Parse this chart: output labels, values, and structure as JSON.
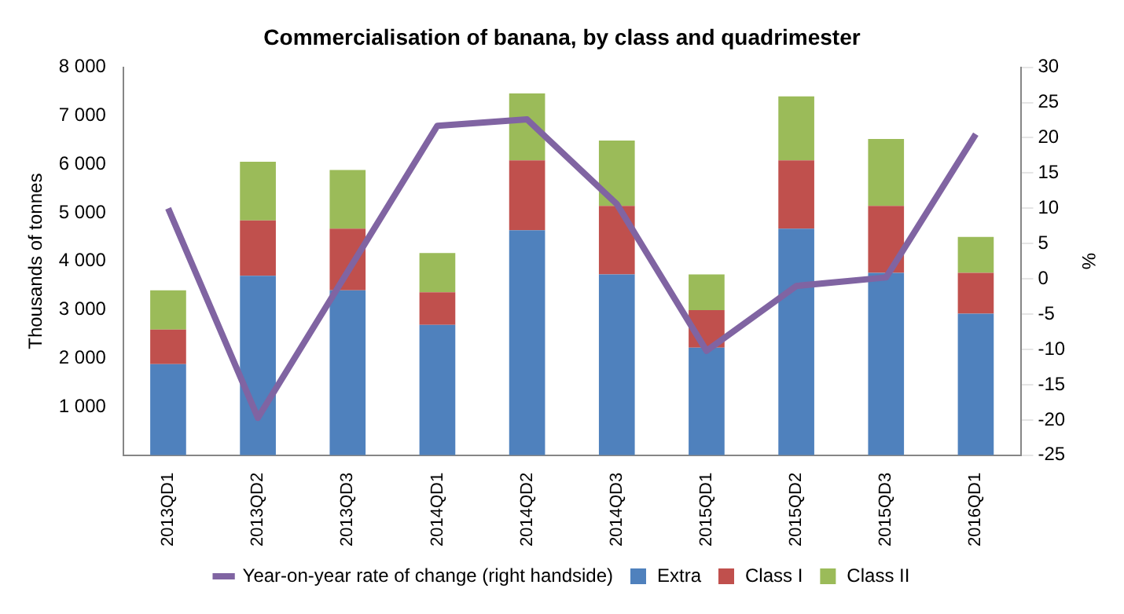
{
  "chart_data": {
    "type": "bar",
    "title": "Commercialisation of banana, by class and quadrimester",
    "ylabel": "Thousands of tonnes",
    "y2label": "%",
    "categories": [
      "2013QD1",
      "2013QD2",
      "2013QD3",
      "2014QD1",
      "2014QD2",
      "2014QD3",
      "2015QD1",
      "2015QD2",
      "2015QD3",
      "2016QD1"
    ],
    "stacked": true,
    "legend": "bottom",
    "grid": false,
    "ylim": [
      0,
      8000
    ],
    "yticks": [
      {
        "value": 0,
        "label": null
      },
      {
        "value": 1000,
        "label": "1 000"
      },
      {
        "value": 2000,
        "label": "2 000"
      },
      {
        "value": 3000,
        "label": "3 000"
      },
      {
        "value": 4000,
        "label": "4 000"
      },
      {
        "value": 5000,
        "label": "5 000"
      },
      {
        "value": 6000,
        "label": "6 000"
      },
      {
        "value": 7000,
        "label": "7 000"
      },
      {
        "value": 8000,
        "label": "8 000"
      }
    ],
    "y2lim": [
      -25,
      30
    ],
    "y2ticks": [
      -25,
      -20,
      -15,
      -10,
      -5,
      0,
      5,
      10,
      15,
      20,
      25,
      30
    ],
    "series": [
      {
        "name": "Extra",
        "color": "#4f81bd",
        "values": [
          1880,
          3700,
          3400,
          2690,
          4640,
          3730,
          2220,
          4670,
          3760,
          2920
        ]
      },
      {
        "name": "Class I",
        "color": "#c0504d",
        "values": [
          710,
          1140,
          1270,
          670,
          1440,
          1410,
          770,
          1410,
          1380,
          840
        ]
      },
      {
        "name": "Class II",
        "color": "#9bbb59",
        "values": [
          810,
          1210,
          1210,
          810,
          1380,
          1350,
          740,
          1320,
          1380,
          740
        ]
      },
      {
        "name": "Year-on-year rate of change (right handside)",
        "type": "line",
        "axis": "y2",
        "color": "#8064a2",
        "marker": "none",
        "values": [
          10,
          -19.7,
          1,
          21.7,
          22.6,
          10.6,
          -10.2,
          -1,
          0.2,
          20.5
        ]
      }
    ]
  }
}
